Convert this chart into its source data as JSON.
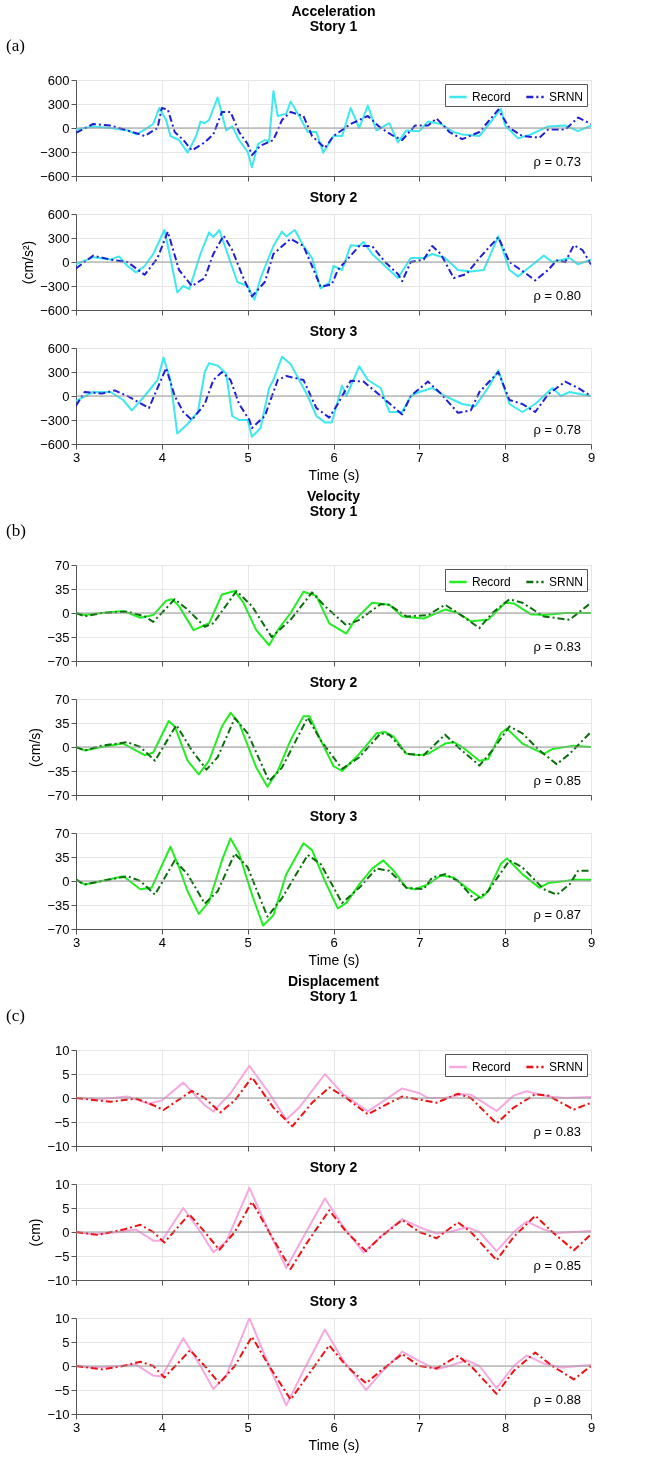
{
  "chart_data": [
    {
      "type": "line",
      "title": "Acceleration",
      "subtitle": "Story 1",
      "annotations": [
        "(a)",
        "ρ = 0.73"
      ],
      "xlim": [
        3,
        9
      ],
      "xticks": [
        3,
        4,
        5,
        6,
        7,
        8,
        9
      ],
      "ylim": [
        -600,
        600
      ],
      "yticks": [
        -600,
        -300,
        0,
        300,
        600
      ],
      "grid": true,
      "legend": "top right",
      "tick_labels": "y",
      "ref_lines": [
        {
          "axis": "y",
          "value": 0,
          "color": "#999999"
        }
      ],
      "series": [
        {
          "name": "Record",
          "color": "#3ee8ee",
          "line_style": "solid",
          "x": [
            3.0,
            3.2,
            3.4,
            3.6,
            3.7,
            3.8,
            3.9,
            3.97,
            4.05,
            4.1,
            4.2,
            4.3,
            4.4,
            4.45,
            4.5,
            4.55,
            4.65,
            4.75,
            4.82,
            4.9,
            5.0,
            5.05,
            5.12,
            5.2,
            5.25,
            5.3,
            5.35,
            5.45,
            5.5,
            5.6,
            5.7,
            5.8,
            5.88,
            6.0,
            6.1,
            6.2,
            6.3,
            6.4,
            6.5,
            6.65,
            6.75,
            6.85,
            7.0,
            7.1,
            7.25,
            7.4,
            7.5,
            7.7,
            7.85,
            7.95,
            8.0,
            8.15,
            8.3,
            8.5,
            8.7,
            8.85,
            9.0
          ],
          "values": [
            -20,
            20,
            0,
            -30,
            -80,
            -20,
            50,
            250,
            100,
            -100,
            -150,
            -310,
            -100,
            80,
            60,
            100,
            380,
            -30,
            20,
            -150,
            -300,
            -490,
            -200,
            -150,
            -170,
            460,
            150,
            180,
            330,
            150,
            -50,
            -50,
            -310,
            -100,
            -100,
            250,
            0,
            280,
            -30,
            60,
            -180,
            -30,
            -40,
            80,
            50,
            -50,
            -80,
            -100,
            100,
            240,
            30,
            -130,
            -80,
            20,
            30,
            -40,
            30
          ]
        },
        {
          "name": "SRNN",
          "color": "#1f1fd6",
          "line_style": "dashed",
          "x": [
            3.0,
            3.2,
            3.4,
            3.6,
            3.8,
            3.95,
            4.0,
            4.07,
            4.15,
            4.25,
            4.35,
            4.5,
            4.6,
            4.7,
            4.8,
            4.9,
            5.0,
            5.05,
            5.15,
            5.3,
            5.4,
            5.5,
            5.65,
            5.75,
            5.9,
            6.0,
            6.2,
            6.4,
            6.55,
            6.7,
            6.8,
            6.95,
            7.1,
            7.2,
            7.35,
            7.5,
            7.7,
            7.92,
            8.05,
            8.2,
            8.4,
            8.5,
            8.7,
            8.85,
            9.0
          ],
          "values": [
            -60,
            50,
            30,
            -30,
            -100,
            0,
            250,
            230,
            -50,
            -150,
            -280,
            -180,
            -80,
            200,
            200,
            -50,
            -200,
            -340,
            -220,
            -150,
            100,
            200,
            150,
            -100,
            -250,
            -100,
            50,
            150,
            0,
            -100,
            -150,
            30,
            30,
            120,
            -50,
            -140,
            -50,
            230,
            0,
            -100,
            -120,
            -20,
            -20,
            130,
            50
          ]
        }
      ]
    },
    {
      "type": "line",
      "title": "Story 2",
      "ylabel": "(cm/s²)",
      "annotations": [
        "ρ = 0.80"
      ],
      "xlim": [
        3,
        9
      ],
      "xticks": [
        3,
        4,
        5,
        6,
        7,
        8,
        9
      ],
      "ylim": [
        -600,
        600
      ],
      "yticks": [
        -600,
        -300,
        0,
        300,
        600
      ],
      "grid": true,
      "tick_labels": "y",
      "ref_lines": [
        {
          "axis": "y",
          "value": 0,
          "color": "#999999"
        }
      ],
      "series": [
        {
          "color": "#3ee8ee",
          "line_style": "solid",
          "x": [
            3.0,
            3.2,
            3.4,
            3.5,
            3.6,
            3.7,
            3.8,
            3.9,
            4.03,
            4.1,
            4.18,
            4.25,
            4.32,
            4.45,
            4.55,
            4.6,
            4.67,
            4.75,
            4.88,
            5.0,
            5.08,
            5.15,
            5.3,
            5.4,
            5.45,
            5.55,
            5.65,
            5.75,
            5.85,
            5.95,
            6.0,
            6.1,
            6.2,
            6.3,
            6.35,
            6.45,
            6.55,
            6.75,
            6.9,
            7.05,
            7.15,
            7.3,
            7.45,
            7.6,
            7.75,
            7.92,
            8.05,
            8.15,
            8.3,
            8.45,
            8.55,
            8.75,
            8.85,
            9.0
          ],
          "values": [
            -30,
            60,
            30,
            70,
            -50,
            -130,
            -50,
            100,
            400,
            50,
            -380,
            -300,
            -340,
            100,
            370,
            310,
            400,
            150,
            -250,
            -300,
            -470,
            -200,
            200,
            380,
            320,
            400,
            200,
            50,
            -330,
            -260,
            -50,
            -100,
            210,
            200,
            250,
            100,
            0,
            -200,
            50,
            50,
            100,
            50,
            -100,
            -120,
            -100,
            320,
            -100,
            -180,
            -50,
            80,
            0,
            50,
            -30,
            30
          ]
        },
        {
          "color": "#1f1fd6",
          "line_style": "dashed",
          "x": [
            3.0,
            3.2,
            3.4,
            3.6,
            3.8,
            3.95,
            4.07,
            4.2,
            4.35,
            4.5,
            4.6,
            4.72,
            4.82,
            4.95,
            5.05,
            5.2,
            5.3,
            5.5,
            5.65,
            5.75,
            5.85,
            5.98,
            6.05,
            6.3,
            6.45,
            6.6,
            6.75,
            6.8,
            6.9,
            7.05,
            7.15,
            7.25,
            7.4,
            7.55,
            7.7,
            7.92,
            8.05,
            8.25,
            8.35,
            8.5,
            8.6,
            8.7,
            8.8,
            8.9,
            9.0
          ],
          "values": [
            -80,
            80,
            30,
            0,
            -160,
            50,
            380,
            -100,
            -300,
            -200,
            100,
            330,
            150,
            -200,
            -430,
            -250,
            100,
            290,
            200,
            -50,
            -310,
            -280,
            -100,
            200,
            200,
            0,
            -150,
            -240,
            0,
            30,
            200,
            100,
            -200,
            -150,
            50,
            310,
            0,
            -150,
            -230,
            -100,
            20,
            0,
            210,
            150,
            -30
          ]
        }
      ]
    },
    {
      "type": "line",
      "title": "Story 3",
      "xlabel": "Time (s)",
      "annotations": [
        "ρ = 0.78"
      ],
      "xlim": [
        3,
        9
      ],
      "xticks": [
        3,
        4,
        5,
        6,
        7,
        8,
        9
      ],
      "ylim": [
        -600,
        600
      ],
      "yticks": [
        -600,
        -300,
        0,
        300,
        600
      ],
      "grid": true,
      "ref_lines": [
        {
          "axis": "y",
          "value": 0,
          "color": "#999999"
        }
      ],
      "series": [
        {
          "color": "#3ee8ee",
          "line_style": "solid",
          "x": [
            3.0,
            3.2,
            3.4,
            3.55,
            3.65,
            3.8,
            3.95,
            4.02,
            4.1,
            4.18,
            4.3,
            4.42,
            4.5,
            4.55,
            4.65,
            4.75,
            4.82,
            4.9,
            5.0,
            5.05,
            5.15,
            5.25,
            5.3,
            5.4,
            5.5,
            5.7,
            5.8,
            5.9,
            5.98,
            6.1,
            6.15,
            6.3,
            6.4,
            6.55,
            6.65,
            6.8,
            6.9,
            7.0,
            7.15,
            7.3,
            7.5,
            7.65,
            7.8,
            7.92,
            8.05,
            8.2,
            8.35,
            8.55,
            8.65,
            8.75,
            9.0
          ],
          "values": [
            -60,
            50,
            50,
            -50,
            -180,
            0,
            200,
            480,
            200,
            -470,
            -350,
            -200,
            300,
            410,
            380,
            280,
            -250,
            -300,
            -300,
            -510,
            -400,
            100,
            200,
            490,
            400,
            0,
            -250,
            -330,
            -330,
            130,
            0,
            370,
            200,
            100,
            -200,
            -200,
            0,
            50,
            100,
            0,
            -100,
            -130,
            100,
            320,
            -100,
            -200,
            -100,
            100,
            0,
            50,
            0
          ]
        },
        {
          "color": "#1f1fd6",
          "line_style": "dashed",
          "x": [
            3.0,
            3.1,
            3.3,
            3.45,
            3.6,
            3.85,
            3.95,
            4.05,
            4.15,
            4.25,
            4.35,
            4.5,
            4.6,
            4.7,
            4.8,
            4.9,
            5.02,
            5.05,
            5.2,
            5.35,
            5.45,
            5.65,
            5.8,
            5.95,
            6.05,
            6.2,
            6.35,
            6.55,
            6.8,
            6.9,
            7.1,
            7.25,
            7.45,
            7.6,
            7.7,
            7.92,
            8.05,
            8.2,
            8.35,
            8.5,
            8.7,
            8.85,
            9.0
          ],
          "values": [
            -120,
            50,
            30,
            70,
            0,
            -150,
            100,
            350,
            0,
            -200,
            -300,
            -100,
            200,
            300,
            200,
            -100,
            -300,
            -400,
            -250,
            200,
            250,
            200,
            -150,
            -270,
            -100,
            190,
            180,
            0,
            -230,
            0,
            180,
            30,
            -210,
            -180,
            50,
            300,
            -50,
            -100,
            -200,
            20,
            180,
            100,
            0
          ]
        }
      ]
    },
    {
      "type": "line",
      "title": "Velocity",
      "subtitle": "Story 1",
      "annotations": [
        "(b)",
        "ρ = 0.83"
      ],
      "xlim": [
        3,
        9
      ],
      "xticks": [
        3,
        4,
        5,
        6,
        7,
        8,
        9
      ],
      "ylim": [
        -70,
        70
      ],
      "yticks": [
        -70,
        -35,
        0,
        35,
        70
      ],
      "grid": true,
      "legend": "top right",
      "tick_labels": "y",
      "ref_lines": [
        {
          "axis": "y",
          "value": 0,
          "color": "#999999"
        }
      ],
      "series": [
        {
          "name": "Record",
          "color": "#22ee22",
          "line_style": "solid",
          "x": [
            3.0,
            3.1,
            3.3,
            3.55,
            3.75,
            3.9,
            4.05,
            4.12,
            4.2,
            4.37,
            4.55,
            4.7,
            4.85,
            4.95,
            5.1,
            5.25,
            5.35,
            5.5,
            5.65,
            5.8,
            5.95,
            6.15,
            6.25,
            6.45,
            6.65,
            6.8,
            7.05,
            7.3,
            7.45,
            7.6,
            7.8,
            8.0,
            8.1,
            8.3,
            8.45,
            8.7,
            9.0
          ],
          "values": [
            0,
            -3,
            0,
            3,
            -7,
            -3,
            18,
            20,
            10,
            -25,
            -15,
            27,
            32,
            15,
            -25,
            -47,
            -25,
            0,
            31,
            25,
            -15,
            -30,
            -10,
            15,
            12,
            -5,
            -8,
            5,
            0,
            -12,
            -10,
            15,
            14,
            -2,
            -3,
            0,
            0
          ]
        },
        {
          "name": "SRNN",
          "color": "#0b6e0b",
          "line_style": "dashed",
          "x": [
            3.0,
            3.1,
            3.3,
            3.6,
            3.8,
            3.9,
            4.15,
            4.3,
            4.5,
            4.6,
            4.87,
            5.05,
            5.28,
            5.5,
            5.75,
            5.9,
            6.15,
            6.3,
            6.55,
            6.65,
            6.85,
            7.1,
            7.3,
            7.45,
            7.7,
            7.85,
            8.05,
            8.2,
            8.45,
            8.75,
            9.0
          ],
          "values": [
            0,
            -5,
            0,
            2,
            -5,
            -13,
            20,
            5,
            -20,
            -15,
            32,
            10,
            -35,
            -10,
            30,
            10,
            -18,
            -10,
            13,
            12,
            -5,
            -3,
            12,
            0,
            -22,
            0,
            20,
            15,
            -5,
            -10,
            15
          ]
        }
      ]
    },
    {
      "type": "line",
      "title": "Story 2",
      "ylabel": "(cm/s)",
      "annotations": [
        "ρ = 0.85"
      ],
      "xlim": [
        3,
        9
      ],
      "xticks": [
        3,
        4,
        5,
        6,
        7,
        8,
        9
      ],
      "ylim": [
        -70,
        70
      ],
      "yticks": [
        -70,
        -35,
        0,
        35,
        70
      ],
      "grid": true,
      "tick_labels": "y",
      "ref_lines": [
        {
          "axis": "y",
          "value": 0,
          "color": "#999999"
        }
      ],
      "series": [
        {
          "color": "#22ee22",
          "line_style": "solid",
          "x": [
            3.0,
            3.1,
            3.3,
            3.55,
            3.8,
            3.9,
            4.08,
            4.15,
            4.3,
            4.43,
            4.55,
            4.7,
            4.8,
            4.9,
            5.1,
            5.23,
            5.35,
            5.5,
            5.65,
            5.72,
            5.85,
            6.0,
            6.1,
            6.3,
            6.5,
            6.6,
            6.7,
            6.85,
            7.0,
            7.1,
            7.3,
            7.4,
            7.5,
            7.7,
            7.8,
            7.95,
            8.02,
            8.2,
            8.45,
            8.55,
            8.8,
            9.0
          ],
          "values": [
            0,
            -5,
            0,
            5,
            -12,
            -8,
            38,
            30,
            -20,
            -40,
            -20,
            30,
            50,
            35,
            -30,
            -58,
            -35,
            10,
            45,
            45,
            10,
            -28,
            -35,
            -10,
            20,
            22,
            15,
            -10,
            -12,
            -10,
            5,
            7,
            0,
            -20,
            -18,
            20,
            27,
            5,
            -10,
            -3,
            2,
            0
          ]
        },
        {
          "color": "#0b6e0b",
          "line_style": "dashed",
          "x": [
            3.0,
            3.1,
            3.3,
            3.6,
            3.75,
            3.92,
            4.17,
            4.35,
            4.52,
            4.65,
            4.85,
            5.0,
            5.25,
            5.4,
            5.7,
            5.85,
            6.1,
            6.3,
            6.55,
            6.65,
            6.85,
            7.05,
            7.3,
            7.45,
            7.7,
            7.85,
            8.05,
            8.2,
            8.4,
            8.6,
            8.75,
            9.0
          ],
          "values": [
            0,
            -5,
            2,
            7,
            0,
            -20,
            32,
            -5,
            -33,
            -15,
            42,
            20,
            -50,
            -30,
            43,
            10,
            -32,
            -15,
            20,
            18,
            -10,
            -12,
            18,
            0,
            -27,
            -5,
            30,
            20,
            -5,
            -25,
            -10,
            22
          ]
        }
      ]
    },
    {
      "type": "line",
      "title": "Story 3",
      "xlabel": "Time (s)",
      "annotations": [
        "ρ = 0.87"
      ],
      "xlim": [
        3,
        9
      ],
      "xticks": [
        3,
        4,
        5,
        6,
        7,
        8,
        9
      ],
      "ylim": [
        -70,
        70
      ],
      "yticks": [
        -70,
        -35,
        0,
        35,
        70
      ],
      "grid": true,
      "ref_lines": [
        {
          "axis": "y",
          "value": 0,
          "color": "#999999"
        }
      ],
      "series": [
        {
          "color": "#22ee22",
          "line_style": "solid",
          "x": [
            3.0,
            3.1,
            3.3,
            3.55,
            3.75,
            3.88,
            4.1,
            4.2,
            4.3,
            4.43,
            4.55,
            4.7,
            4.8,
            4.9,
            5.05,
            5.18,
            5.3,
            5.45,
            5.65,
            5.75,
            5.9,
            6.05,
            6.15,
            6.3,
            6.45,
            6.58,
            6.7,
            6.85,
            6.95,
            7.1,
            7.25,
            7.4,
            7.55,
            7.72,
            7.8,
            7.95,
            8.02,
            8.2,
            8.4,
            8.5,
            8.7,
            8.8,
            9.0
          ],
          "values": [
            2,
            -5,
            0,
            7,
            -12,
            -10,
            50,
            20,
            -15,
            -48,
            -30,
            30,
            62,
            40,
            -20,
            -65,
            -50,
            10,
            55,
            45,
            0,
            -40,
            -32,
            -5,
            18,
            30,
            15,
            -10,
            -12,
            -5,
            8,
            5,
            -10,
            -25,
            -15,
            25,
            33,
            10,
            -10,
            -3,
            0,
            2,
            2
          ]
        },
        {
          "color": "#0b6e0b",
          "line_style": "dashed",
          "x": [
            3.0,
            3.1,
            3.3,
            3.6,
            3.75,
            3.92,
            4.15,
            4.3,
            4.5,
            4.65,
            4.85,
            5.0,
            5.23,
            5.4,
            5.7,
            5.85,
            6.1,
            6.3,
            6.5,
            6.65,
            6.85,
            7.05,
            7.15,
            7.3,
            7.45,
            7.65,
            7.8,
            8.05,
            8.2,
            8.45,
            8.6,
            8.75,
            8.85,
            9.0
          ],
          "values": [
            2,
            -5,
            0,
            7,
            0,
            -20,
            30,
            10,
            -33,
            -15,
            40,
            20,
            -52,
            -25,
            38,
            25,
            -32,
            -10,
            18,
            15,
            -10,
            -12,
            5,
            10,
            0,
            -28,
            -15,
            30,
            20,
            -12,
            -20,
            -5,
            15,
            15
          ]
        }
      ]
    },
    {
      "type": "line",
      "title": "Displacement",
      "subtitle": "Story 1",
      "annotations": [
        "(c)",
        "ρ = 0.83"
      ],
      "xlim": [
        3,
        9
      ],
      "xticks": [
        3,
        4,
        5,
        6,
        7,
        8,
        9
      ],
      "ylim": [
        -10,
        10
      ],
      "yticks": [
        -10,
        -5,
        0,
        5,
        10
      ],
      "grid": true,
      "legend": "top right",
      "tick_labels": "y",
      "ref_lines": [
        {
          "axis": "y",
          "value": 0,
          "color": "#999999"
        }
      ],
      "series": [
        {
          "name": "Record",
          "color": "#f7a8df",
          "line_style": "solid",
          "x": [
            3.0,
            3.3,
            3.6,
            3.85,
            4.0,
            4.25,
            4.5,
            4.6,
            4.8,
            5.02,
            5.25,
            5.45,
            5.6,
            5.9,
            6.1,
            6.4,
            6.55,
            6.8,
            7.0,
            7.1,
            7.3,
            7.5,
            7.6,
            7.9,
            8.1,
            8.25,
            8.5,
            8.7,
            9.0
          ],
          "values": [
            0,
            -0.2,
            0.3,
            -1.2,
            -0.5,
            3.2,
            -1.5,
            -2.8,
            1,
            6.7,
            1,
            -4.5,
            -2,
            5,
            1,
            -2.8,
            -1,
            2,
            1,
            0,
            0,
            0.8,
            0.7,
            -2.7,
            0.5,
            1.4,
            0.3,
            0,
            0.2
          ]
        },
        {
          "name": "SRNN",
          "color": "#ee1111",
          "line_style": "dashed",
          "x": [
            3.0,
            3.4,
            3.7,
            3.9,
            4.02,
            4.35,
            4.5,
            4.68,
            4.85,
            5.05,
            5.3,
            5.52,
            5.75,
            5.95,
            6.15,
            6.4,
            6.6,
            6.8,
            7.0,
            7.2,
            7.45,
            7.6,
            7.9,
            8.1,
            8.35,
            8.5,
            8.8,
            9.0
          ],
          "values": [
            0,
            -0.8,
            -0.1,
            -1.5,
            -2.5,
            1.5,
            0,
            -3,
            -0.5,
            4.3,
            -2,
            -5.9,
            -1,
            2.2,
            0,
            -3.4,
            -1.5,
            0.3,
            -0.3,
            -1,
            0.9,
            0,
            -5.3,
            -2,
            0.8,
            0.5,
            -2.4,
            -1
          ]
        }
      ]
    },
    {
      "type": "line",
      "title": "Story 2",
      "ylabel": "(cm)",
      "annotations": [
        "ρ = 0.85"
      ],
      "xlim": [
        3,
        9
      ],
      "xticks": [
        3,
        4,
        5,
        6,
        7,
        8,
        9
      ],
      "ylim": [
        -10,
        10
      ],
      "yticks": [
        -10,
        -5,
        0,
        5,
        10
      ],
      "grid": true,
      "tick_labels": "y",
      "ref_lines": [
        {
          "axis": "y",
          "value": 0,
          "color": "#999999"
        }
      ],
      "series": [
        {
          "color": "#f7a8df",
          "line_style": "solid",
          "x": [
            3.0,
            3.2,
            3.5,
            3.7,
            3.9,
            4.0,
            4.25,
            4.45,
            4.6,
            4.75,
            5.02,
            5.25,
            5.45,
            5.65,
            5.9,
            6.1,
            6.35,
            6.55,
            6.8,
            7.0,
            7.2,
            7.35,
            7.55,
            7.7,
            7.9,
            8.1,
            8.25,
            8.45,
            8.6,
            9.0
          ],
          "values": [
            0,
            -0.5,
            0,
            0.5,
            -1.8,
            -1.8,
            5,
            0,
            -4.2,
            -2,
            9.2,
            0,
            -7.5,
            -1,
            7,
            1.5,
            -4.3,
            -1,
            2.7,
            1,
            -0.3,
            0,
            1,
            0,
            -4,
            0,
            2.2,
            0.5,
            -0.2,
            0.2
          ]
        },
        {
          "color": "#ee1111",
          "line_style": "dashed",
          "x": [
            3.0,
            3.25,
            3.55,
            3.75,
            3.9,
            4.03,
            4.32,
            4.5,
            4.67,
            4.85,
            5.05,
            5.25,
            5.5,
            5.7,
            5.95,
            6.15,
            6.38,
            6.55,
            6.8,
            7.0,
            7.2,
            7.45,
            7.6,
            7.9,
            8.1,
            8.35,
            8.55,
            8.8,
            9.0
          ],
          "values": [
            0,
            -0.6,
            0.5,
            1.5,
            0,
            -2.2,
            3.7,
            0,
            -3.7,
            0,
            6.3,
            0,
            -7.7,
            -2,
            4.5,
            0,
            -4,
            -1,
            2.5,
            0,
            -1.3,
            2,
            0,
            -5.9,
            -1,
            3.4,
            0,
            -3.8,
            -0.5
          ]
        }
      ]
    },
    {
      "type": "line",
      "title": "Story 3",
      "xlabel": "Time (s)",
      "annotations": [
        "ρ = 0.88"
      ],
      "xlim": [
        3,
        9
      ],
      "xticks": [
        3,
        4,
        5,
        6,
        7,
        8,
        9
      ],
      "ylim": [
        -10,
        10
      ],
      "yticks": [
        -10,
        -5,
        0,
        5,
        10
      ],
      "grid": true,
      "ref_lines": [
        {
          "axis": "y",
          "value": 0,
          "color": "#999999"
        }
      ],
      "series": [
        {
          "color": "#f7a8df",
          "line_style": "solid",
          "x": [
            3.0,
            3.2,
            3.5,
            3.7,
            3.9,
            4.0,
            4.25,
            4.45,
            4.6,
            4.75,
            5.02,
            5.25,
            5.45,
            5.65,
            5.9,
            6.1,
            6.38,
            6.55,
            6.8,
            7.0,
            7.2,
            7.35,
            7.55,
            7.7,
            7.9,
            8.1,
            8.25,
            8.45,
            8.65,
            9.0
          ],
          "values": [
            0,
            -0.3,
            0,
            0.3,
            -2,
            -2.2,
            5.8,
            0,
            -4.8,
            -2,
            10,
            0,
            -8.2,
            -1,
            7.6,
            1.5,
            -5,
            -1.5,
            3,
            1,
            -0.7,
            0,
            1.2,
            0,
            -4.6,
            0,
            2.2,
            0.5,
            -0.3,
            0.2
          ]
        },
        {
          "color": "#ee1111",
          "line_style": "dashed",
          "x": [
            3.0,
            3.3,
            3.55,
            3.75,
            3.9,
            4.03,
            4.33,
            4.5,
            4.67,
            4.85,
            5.05,
            5.25,
            5.5,
            5.7,
            5.95,
            6.15,
            6.38,
            6.55,
            6.8,
            7.0,
            7.2,
            7.45,
            7.6,
            7.9,
            8.1,
            8.35,
            8.55,
            8.8,
            9.0
          ],
          "values": [
            0,
            -0.7,
            0,
            0.9,
            0,
            -2.4,
            3.3,
            0,
            -3.6,
            0,
            6.1,
            0,
            -7,
            -2,
            4.3,
            0,
            -3.6,
            -1,
            2.5,
            0,
            -0.5,
            2.1,
            0,
            -5.8,
            -1,
            2.8,
            0,
            -2.8,
            0
          ]
        }
      ]
    }
  ]
}
